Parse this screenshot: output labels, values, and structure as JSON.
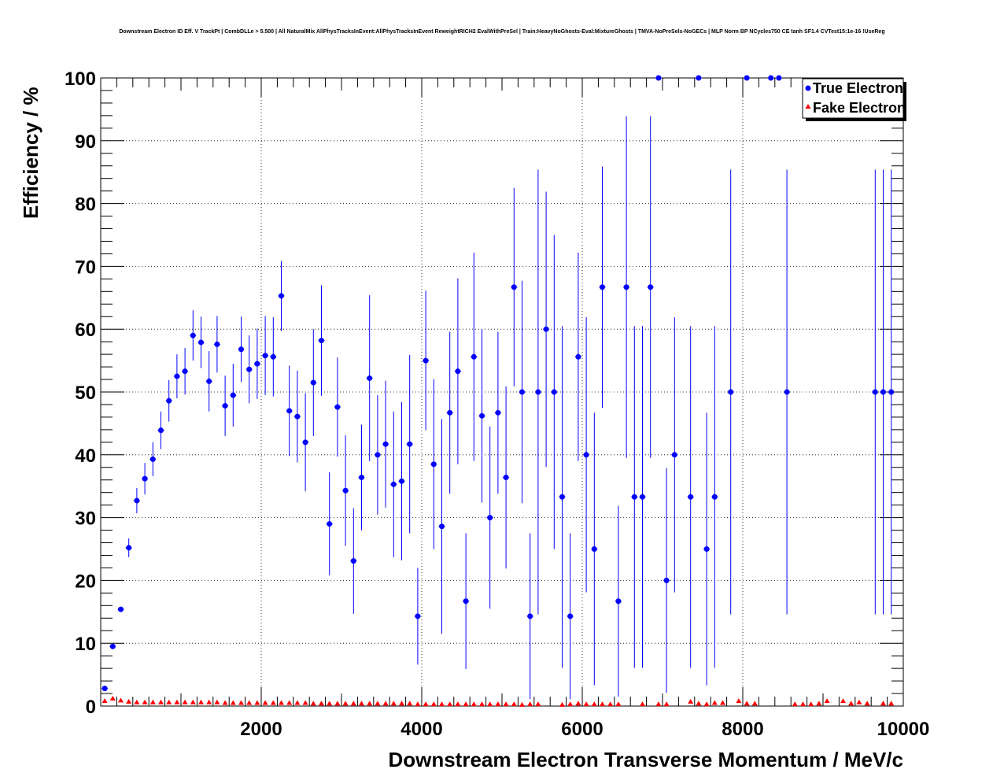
{
  "chart_data": {
    "type": "scatter",
    "title": "Downstream Electron ID Eff. V TrackPt | CombDLLe > 5.500 | All NaturalMix AllPhysTracksInEvent:AllPhysTracksInEvent ReweightRICH2 EvalWithPreSel | Train:HeavyNoGhosts-Eval:MixtureGhosts | TMVA-NoPreSels-NoGECs | MLP Norm BP NCycles750 CE tanh SF1.4 CVTest15:1e-16 !UseReg",
    "xlabel": "Downstream Electron Transverse Momentum / MeV/c",
    "ylabel": "Efficiency / %",
    "xlim": [
      0,
      10000
    ],
    "ylim": [
      0,
      100
    ],
    "x_ticks": [
      2000,
      4000,
      6000,
      8000,
      10000
    ],
    "y_ticks": [
      0,
      10,
      20,
      30,
      40,
      50,
      60,
      70,
      80,
      90,
      100
    ],
    "x_tick_labels": [
      "2000",
      "4000",
      "6000",
      "8000",
      "10000"
    ],
    "y_tick_labels": [
      "0",
      "10",
      "20",
      "30",
      "40",
      "50",
      "60",
      "70",
      "80",
      "90",
      "100"
    ],
    "grid": true,
    "legend_position": "top-right",
    "series": [
      {
        "name": "True Electron",
        "color": "#0000ff",
        "marker": "circle",
        "points": [
          {
            "x": 50,
            "y": 2.8,
            "lo": 0,
            "hi": 0
          },
          {
            "x": 150,
            "y": 9.5,
            "lo": 0,
            "hi": 0
          },
          {
            "x": 250,
            "y": 15.4,
            "lo": 0,
            "hi": 0
          },
          {
            "x": 350,
            "y": 25.2,
            "lo": 1.5,
            "hi": 1.5
          },
          {
            "x": 450,
            "y": 32.7,
            "lo": 2.0,
            "hi": 2.0
          },
          {
            "x": 550,
            "y": 36.2,
            "lo": 2.5,
            "hi": 2.5
          },
          {
            "x": 650,
            "y": 39.3,
            "lo": 2.7,
            "hi": 2.7
          },
          {
            "x": 750,
            "y": 43.9,
            "lo": 3.0,
            "hi": 3.0
          },
          {
            "x": 850,
            "y": 48.6,
            "lo": 3.3,
            "hi": 3.3
          },
          {
            "x": 950,
            "y": 52.5,
            "lo": 3.5,
            "hi": 3.5
          },
          {
            "x": 1050,
            "y": 53.3,
            "lo": 3.7,
            "hi": 3.7
          },
          {
            "x": 1150,
            "y": 59.0,
            "lo": 4.0,
            "hi": 4.0
          },
          {
            "x": 1250,
            "y": 57.9,
            "lo": 4.1,
            "hi": 4.1
          },
          {
            "x": 1350,
            "y": 51.7,
            "lo": 4.8,
            "hi": 4.8
          },
          {
            "x": 1450,
            "y": 57.6,
            "lo": 4.5,
            "hi": 4.5
          },
          {
            "x": 1550,
            "y": 47.8,
            "lo": 4.8,
            "hi": 4.8
          },
          {
            "x": 1650,
            "y": 49.5,
            "lo": 5.0,
            "hi": 5.0
          },
          {
            "x": 1750,
            "y": 56.8,
            "lo": 5.2,
            "hi": 5.2
          },
          {
            "x": 1850,
            "y": 53.6,
            "lo": 5.4,
            "hi": 5.4
          },
          {
            "x": 1950,
            "y": 54.5,
            "lo": 5.6,
            "hi": 5.6
          },
          {
            "x": 2050,
            "y": 55.8,
            "lo": 6.3,
            "hi": 6.3
          },
          {
            "x": 2150,
            "y": 55.6,
            "lo": 6.3,
            "hi": 6.3
          },
          {
            "x": 2250,
            "y": 65.3,
            "lo": 5.6,
            "hi": 5.6
          },
          {
            "x": 2350,
            "y": 47.0,
            "lo": 7.2,
            "hi": 7.2
          },
          {
            "x": 2450,
            "y": 46.1,
            "lo": 7.3,
            "hi": 7.3
          },
          {
            "x": 2550,
            "y": 42.0,
            "lo": 7.8,
            "hi": 7.8
          },
          {
            "x": 2650,
            "y": 51.5,
            "lo": 8.5,
            "hi": 8.5
          },
          {
            "x": 2750,
            "y": 58.2,
            "lo": 8.8,
            "hi": 8.8
          },
          {
            "x": 2850,
            "y": 29.0,
            "lo": 8.2,
            "hi": 8.2
          },
          {
            "x": 2950,
            "y": 47.6,
            "lo": 7.9,
            "hi": 7.9
          },
          {
            "x": 3050,
            "y": 34.3,
            "lo": 8.8,
            "hi": 8.8
          },
          {
            "x": 3150,
            "y": 23.1,
            "lo": 8.4,
            "hi": 8.4
          },
          {
            "x": 3250,
            "y": 36.4,
            "lo": 8.4,
            "hi": 8.4
          },
          {
            "x": 3350,
            "y": 52.2,
            "lo": 13.2,
            "hi": 13.2
          },
          {
            "x": 3450,
            "y": 40.0,
            "lo": 9.5,
            "hi": 9.5
          },
          {
            "x": 3550,
            "y": 41.7,
            "lo": 10.1,
            "hi": 10.1
          },
          {
            "x": 3650,
            "y": 35.3,
            "lo": 11.6,
            "hi": 11.6
          },
          {
            "x": 3750,
            "y": 35.8,
            "lo": 12.6,
            "hi": 12.6
          },
          {
            "x": 3850,
            "y": 41.7,
            "lo": 14.2,
            "hi": 14.2
          },
          {
            "x": 3950,
            "y": 14.3,
            "lo": 7.7,
            "hi": 7.7
          },
          {
            "x": 4050,
            "y": 55.0,
            "lo": 11.1,
            "hi": 11.1
          },
          {
            "x": 4150,
            "y": 38.5,
            "lo": 13.5,
            "hi": 13.5
          },
          {
            "x": 4250,
            "y": 28.6,
            "lo": 17.1,
            "hi": 17.1
          },
          {
            "x": 4350,
            "y": 46.7,
            "lo": 12.9,
            "hi": 12.9
          },
          {
            "x": 4450,
            "y": 53.3,
            "lo": 14.8,
            "hi": 14.8
          },
          {
            "x": 4550,
            "y": 16.7,
            "lo": 10.8,
            "hi": 10.8
          },
          {
            "x": 4650,
            "y": 55.6,
            "lo": 16.6,
            "hi": 16.6
          },
          {
            "x": 4750,
            "y": 46.2,
            "lo": 13.8,
            "hi": 13.8
          },
          {
            "x": 4850,
            "y": 30.0,
            "lo": 14.5,
            "hi": 14.5
          },
          {
            "x": 4950,
            "y": 46.7,
            "lo": 12.9,
            "hi": 12.9
          },
          {
            "x": 5050,
            "y": 36.4,
            "lo": 14.5,
            "hi": 14.5
          },
          {
            "x": 5150,
            "y": 66.7,
            "lo": 15.8,
            "hi": 15.8
          },
          {
            "x": 5250,
            "y": 50.0,
            "lo": 17.7,
            "hi": 17.7
          },
          {
            "x": 5350,
            "y": 14.3,
            "lo": 13.2,
            "hi": 13.2
          },
          {
            "x": 5450,
            "y": 50.0,
            "lo": 35.4,
            "hi": 35.4
          },
          {
            "x": 5550,
            "y": 60.0,
            "lo": 21.9,
            "hi": 21.9
          },
          {
            "x": 5650,
            "y": 50.0,
            "lo": 25.0,
            "hi": 25.0
          },
          {
            "x": 5750,
            "y": 33.3,
            "lo": 27.2,
            "hi": 27.2
          },
          {
            "x": 5850,
            "y": 14.3,
            "lo": 13.2,
            "hi": 13.2
          },
          {
            "x": 5950,
            "y": 55.6,
            "lo": 16.6,
            "hi": 16.6
          },
          {
            "x": 6050,
            "y": 40.0,
            "lo": 21.9,
            "hi": 21.9
          },
          {
            "x": 6150,
            "y": 25.0,
            "lo": 21.7,
            "hi": 21.7
          },
          {
            "x": 6250,
            "y": 66.7,
            "lo": 19.2,
            "hi": 19.2
          },
          {
            "x": 6450,
            "y": 16.7,
            "lo": 15.2,
            "hi": 15.2
          },
          {
            "x": 6550,
            "y": 66.7,
            "lo": 27.2,
            "hi": 27.2
          },
          {
            "x": 6650,
            "y": 33.3,
            "lo": 27.2,
            "hi": 27.2
          },
          {
            "x": 6750,
            "y": 33.3,
            "lo": 27.2,
            "hi": 27.2
          },
          {
            "x": 6850,
            "y": 66.7,
            "lo": 27.2,
            "hi": 27.2
          },
          {
            "x": 6950,
            "y": 100,
            "lo": 0,
            "hi": 0
          },
          {
            "x": 7050,
            "y": 20.0,
            "lo": 17.9,
            "hi": 17.9
          },
          {
            "x": 7150,
            "y": 40.0,
            "lo": 21.9,
            "hi": 21.9
          },
          {
            "x": 7350,
            "y": 33.3,
            "lo": 27.2,
            "hi": 27.2
          },
          {
            "x": 7450,
            "y": 100,
            "lo": 0,
            "hi": 0
          },
          {
            "x": 7550,
            "y": 25.0,
            "lo": 21.7,
            "hi": 21.7
          },
          {
            "x": 7650,
            "y": 33.3,
            "lo": 27.2,
            "hi": 27.2
          },
          {
            "x": 7850,
            "y": 50.0,
            "lo": 35.4,
            "hi": 35.4
          },
          {
            "x": 8050,
            "y": 100,
            "lo": 0,
            "hi": 0
          },
          {
            "x": 8350,
            "y": 100,
            "lo": 0,
            "hi": 0
          },
          {
            "x": 8450,
            "y": 100,
            "lo": 0,
            "hi": 0
          },
          {
            "x": 8550,
            "y": 50.0,
            "lo": 35.4,
            "hi": 35.4
          },
          {
            "x": 9650,
            "y": 50.0,
            "lo": 35.4,
            "hi": 35.4
          },
          {
            "x": 9750,
            "y": 50.0,
            "lo": 35.4,
            "hi": 35.4
          },
          {
            "x": 9850,
            "y": 50.0,
            "lo": 35.4,
            "hi": 35.4
          }
        ]
      },
      {
        "name": "Fake Electron",
        "color": "#ff0000",
        "marker": "triangle",
        "points": [
          {
            "x": 50,
            "y": 0.8
          },
          {
            "x": 150,
            "y": 1.2
          },
          {
            "x": 250,
            "y": 0.9
          },
          {
            "x": 350,
            "y": 0.7
          },
          {
            "x": 450,
            "y": 0.6
          },
          {
            "x": 550,
            "y": 0.6
          },
          {
            "x": 650,
            "y": 0.6
          },
          {
            "x": 750,
            "y": 0.6
          },
          {
            "x": 850,
            "y": 0.6
          },
          {
            "x": 950,
            "y": 0.6
          },
          {
            "x": 1050,
            "y": 0.6
          },
          {
            "x": 1150,
            "y": 0.6
          },
          {
            "x": 1250,
            "y": 0.6
          },
          {
            "x": 1350,
            "y": 0.6
          },
          {
            "x": 1450,
            "y": 0.6
          },
          {
            "x": 1550,
            "y": 0.5
          },
          {
            "x": 1650,
            "y": 0.5
          },
          {
            "x": 1750,
            "y": 0.5
          },
          {
            "x": 1850,
            "y": 0.5
          },
          {
            "x": 1950,
            "y": 0.5
          },
          {
            "x": 2050,
            "y": 0.5
          },
          {
            "x": 2150,
            "y": 0.5
          },
          {
            "x": 2250,
            "y": 0.5
          },
          {
            "x": 2350,
            "y": 0.5
          },
          {
            "x": 2450,
            "y": 0.5
          },
          {
            "x": 2550,
            "y": 0.5
          },
          {
            "x": 2650,
            "y": 0.4
          },
          {
            "x": 2750,
            "y": 0.4
          },
          {
            "x": 2850,
            "y": 0.4
          },
          {
            "x": 2950,
            "y": 0.4
          },
          {
            "x": 3050,
            "y": 0.4
          },
          {
            "x": 3150,
            "y": 0.4
          },
          {
            "x": 3250,
            "y": 0.4
          },
          {
            "x": 3350,
            "y": 0.4
          },
          {
            "x": 3450,
            "y": 0.4
          },
          {
            "x": 3550,
            "y": 0.4
          },
          {
            "x": 3650,
            "y": 0.4
          },
          {
            "x": 3750,
            "y": 0.4
          },
          {
            "x": 3850,
            "y": 0.4
          },
          {
            "x": 3950,
            "y": 0.3
          },
          {
            "x": 4050,
            "y": 0.3
          },
          {
            "x": 4150,
            "y": 0.3
          },
          {
            "x": 4250,
            "y": 0.3
          },
          {
            "x": 4350,
            "y": 0.3
          },
          {
            "x": 4450,
            "y": 0.3
          },
          {
            "x": 4550,
            "y": 0.3
          },
          {
            "x": 4650,
            "y": 0.3
          },
          {
            "x": 4750,
            "y": 0.3
          },
          {
            "x": 4850,
            "y": 0.3
          },
          {
            "x": 4950,
            "y": 0.3
          },
          {
            "x": 5050,
            "y": 0.3
          },
          {
            "x": 5150,
            "y": 0.3
          },
          {
            "x": 5250,
            "y": 0.2
          },
          {
            "x": 5350,
            "y": 0.3
          },
          {
            "x": 5450,
            "y": 0.3
          },
          {
            "x": 5750,
            "y": 0.2
          },
          {
            "x": 5850,
            "y": 0.3
          },
          {
            "x": 5950,
            "y": 0.4
          },
          {
            "x": 6050,
            "y": 0.3
          },
          {
            "x": 6150,
            "y": 0.3
          },
          {
            "x": 6250,
            "y": 0.3
          },
          {
            "x": 6350,
            "y": 0.3
          },
          {
            "x": 6450,
            "y": 0.3
          },
          {
            "x": 6750,
            "y": 0.3
          },
          {
            "x": 6950,
            "y": 0.3
          },
          {
            "x": 7050,
            "y": 0.3
          },
          {
            "x": 7350,
            "y": 0.7
          },
          {
            "x": 7450,
            "y": 0.4
          },
          {
            "x": 7550,
            "y": 0.3
          },
          {
            "x": 7650,
            "y": 0.5
          },
          {
            "x": 7750,
            "y": 0.5
          },
          {
            "x": 7950,
            "y": 0.8
          },
          {
            "x": 8050,
            "y": 0.4
          },
          {
            "x": 8150,
            "y": 0.4
          },
          {
            "x": 8650,
            "y": 0.3
          },
          {
            "x": 8750,
            "y": 0.3
          },
          {
            "x": 8850,
            "y": 0.3
          },
          {
            "x": 8950,
            "y": 0.4
          },
          {
            "x": 9050,
            "y": 0.8
          },
          {
            "x": 9250,
            "y": 0.8
          },
          {
            "x": 9350,
            "y": 0.4
          },
          {
            "x": 9450,
            "y": 0.6
          },
          {
            "x": 9550,
            "y": 0.4
          },
          {
            "x": 9750,
            "y": 0.4
          },
          {
            "x": 9850,
            "y": 0.4
          }
        ]
      }
    ]
  }
}
